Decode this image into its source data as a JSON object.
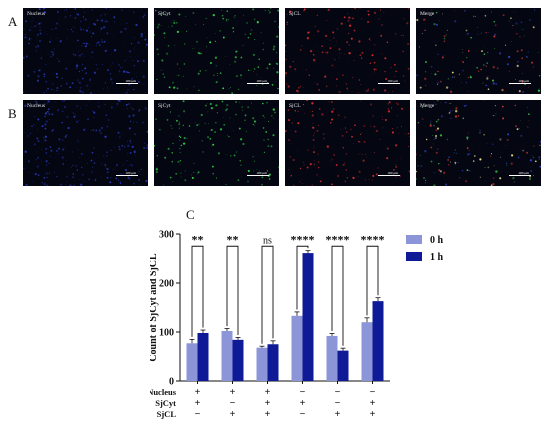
{
  "figure": {
    "panel_a": {
      "letter": "A",
      "tiles": [
        {
          "label": "Nucleus",
          "scale": "100 μm",
          "tone": "#2a3cc0"
        },
        {
          "label": "SjCyt",
          "scale": "100 μm",
          "tone": "#33d94a"
        },
        {
          "label": "SjCL",
          "scale": "100 μm",
          "tone": "#e03030"
        },
        {
          "label": "Merge",
          "scale": "100 μm",
          "tone": "#f0f0f0"
        }
      ]
    },
    "panel_b": {
      "letter": "B",
      "tiles": [
        {
          "label": "Nucleus",
          "scale": "100 μm",
          "tone": "#2a3cc0"
        },
        {
          "label": "SjCyt",
          "scale": "100 μm",
          "tone": "#33d94a"
        },
        {
          "label": "SjCL",
          "scale": "100 μm",
          "tone": "#e03030"
        },
        {
          "label": "Merge",
          "scale": "100 μm",
          "tone": "#f0f0f0"
        }
      ]
    },
    "panel_c": {
      "letter": "C"
    }
  },
  "chart_data": {
    "type": "bar",
    "ylabel": "Count of SjCyt and SjCL",
    "ylim": [
      0,
      300
    ],
    "yticks": [
      0,
      100,
      200,
      300
    ],
    "legend_position": "top-right",
    "series": [
      {
        "name": "0 h",
        "color": "#8c95d8",
        "values": [
          77,
          102,
          68,
          133,
          92,
          120
        ],
        "errors": [
          8,
          5,
          3,
          8,
          5,
          9
        ]
      },
      {
        "name": "1 h",
        "color": "#0f1b96",
        "values": [
          98,
          84,
          75,
          261,
          62,
          163
        ],
        "errors": [
          6,
          5,
          7,
          5,
          5,
          7
        ]
      }
    ],
    "significance": [
      "**",
      "**",
      "ns",
      "****",
      "****",
      "****"
    ],
    "condition_rows": [
      {
        "name": "Nucleus",
        "signs": [
          "+",
          "+",
          "+",
          "−",
          "−",
          "−"
        ]
      },
      {
        "name": "SjCyt",
        "signs": [
          "+",
          "−",
          "+",
          "+",
          "−",
          "+"
        ]
      },
      {
        "name": "SjCL",
        "signs": [
          "−",
          "+",
          "+",
          "−",
          "+",
          "+"
        ]
      }
    ]
  }
}
